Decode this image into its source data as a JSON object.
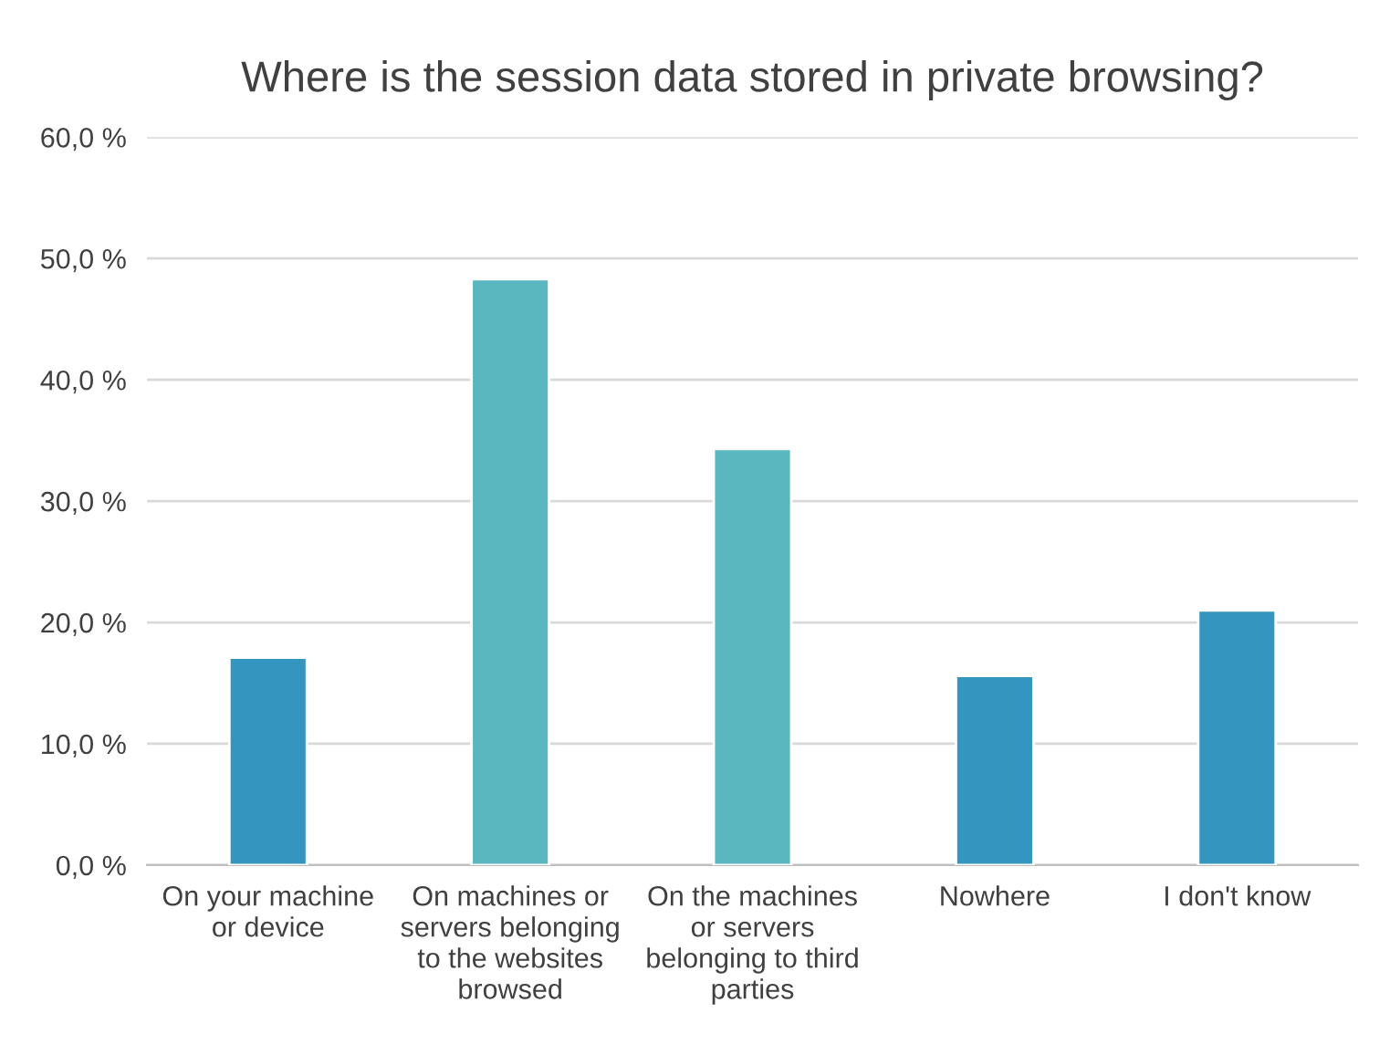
{
  "chart_data": {
    "type": "bar",
    "title": "Where is the session data stored in private browsing?",
    "categories": [
      "On your machine\nor device",
      "On machines or\nservers belonging\nto the websites\nbrowsed",
      "On the machines\nor servers\nbelonging to third\nparties",
      "Nowhere",
      "I don't know"
    ],
    "values": [
      17.1,
      48.3,
      34.3,
      15.6,
      21.0
    ],
    "colors": [
      "#3496bf",
      "#5ab7c0",
      "#5ab7c0",
      "#3496bf",
      "#3496bf"
    ],
    "ylim": [
      0,
      60
    ],
    "yticks": [
      {
        "value": 0,
        "label": "0,0 %"
      },
      {
        "value": 10,
        "label": "10,0 %"
      },
      {
        "value": 20,
        "label": "20,0 %"
      },
      {
        "value": 30,
        "label": "30,0 %"
      },
      {
        "value": 40,
        "label": "40,0 %"
      },
      {
        "value": 50,
        "label": "50,0 %"
      },
      {
        "value": 60,
        "label": "60,0 %"
      }
    ],
    "grid": "y"
  }
}
